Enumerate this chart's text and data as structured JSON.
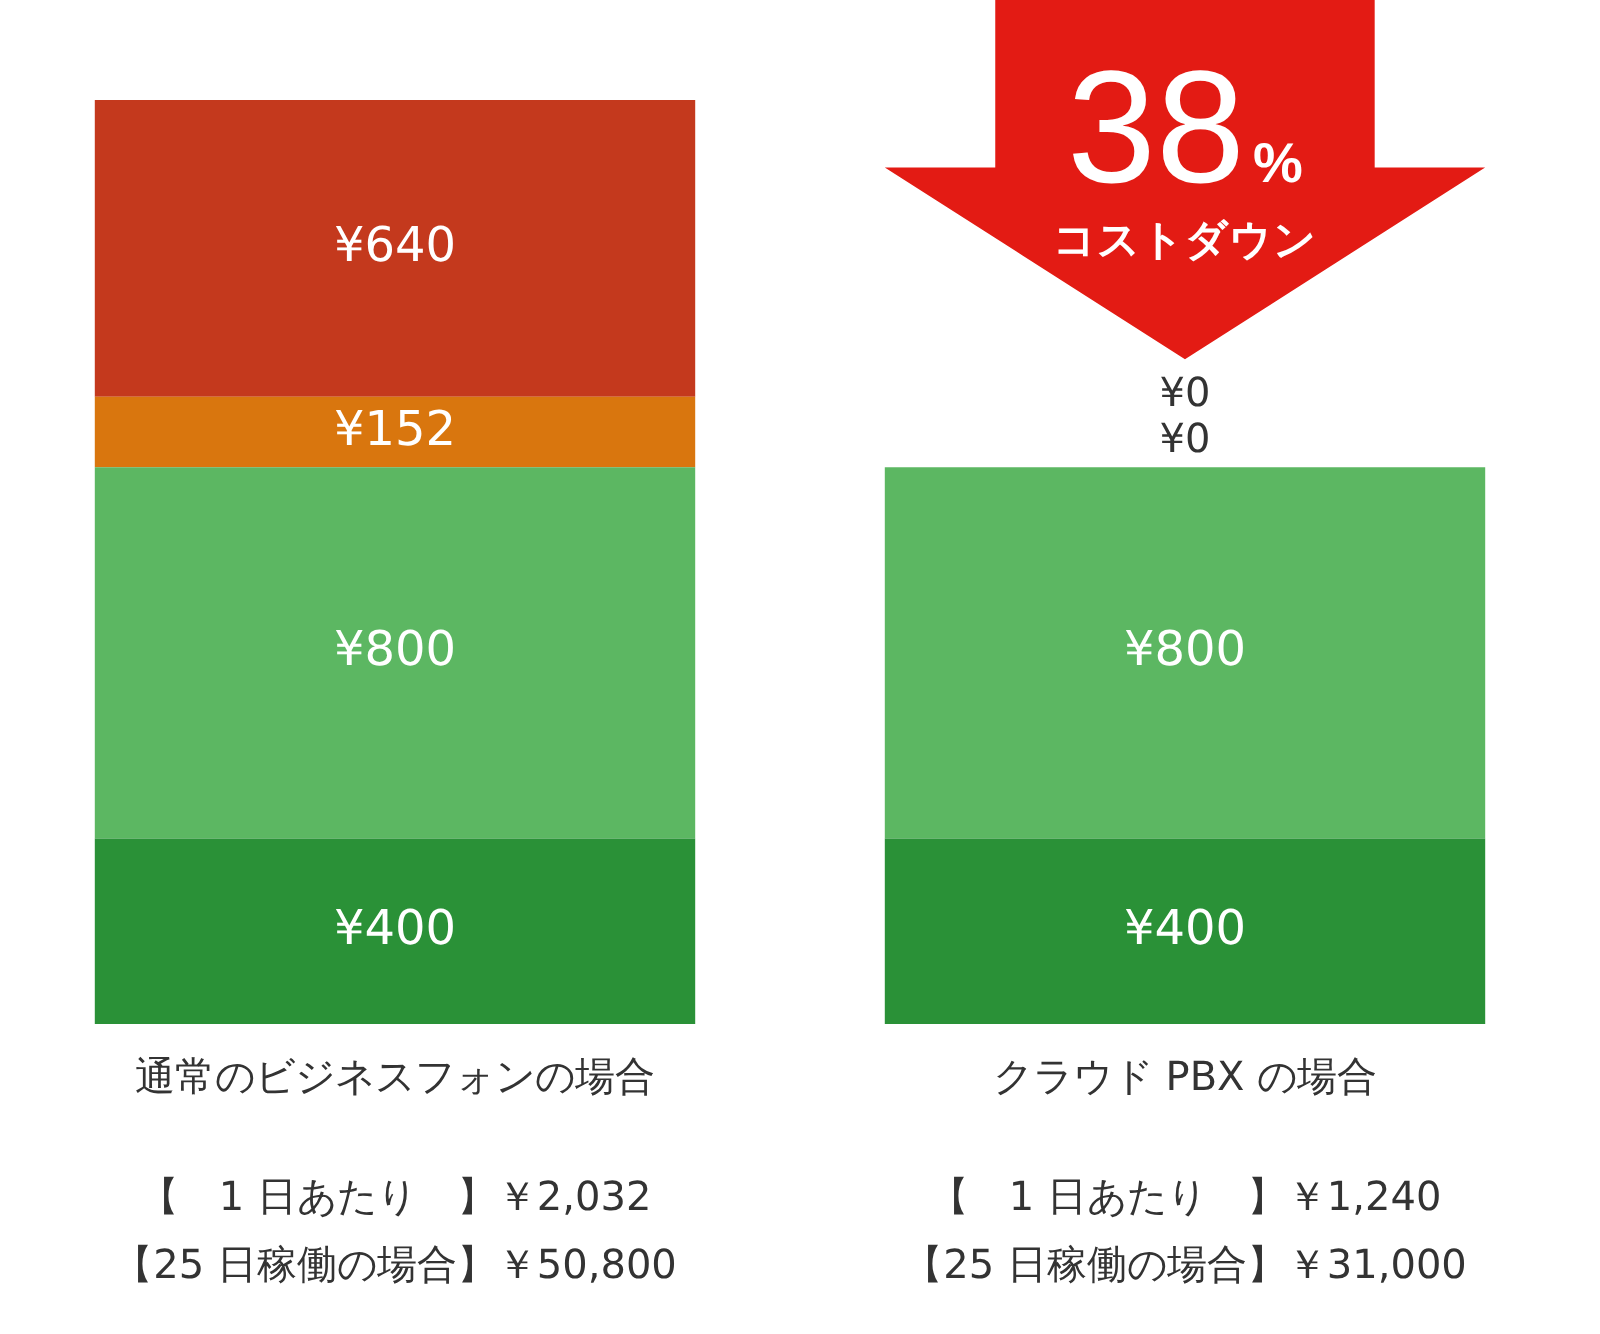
{
  "chart_data": {
    "type": "bar",
    "stacked": true,
    "categories": [
      "通常のビジネスフォンの場合",
      "クラウド PBX の場合"
    ],
    "series": [
      {
        "color": "#2a9137",
        "values": [
          400,
          400
        ],
        "value_labels": [
          "¥400",
          "¥400"
        ]
      },
      {
        "color": "#5cb762",
        "values": [
          800,
          800
        ],
        "value_labels": [
          "¥800",
          "¥800"
        ]
      },
      {
        "color": "#d9760e",
        "values": [
          152,
          0
        ],
        "value_labels": [
          "¥152",
          "¥0"
        ]
      },
      {
        "color": "#c4391d",
        "values": [
          640,
          0
        ],
        "value_labels": [
          "¥640",
          "¥0"
        ]
      }
    ],
    "annotations": [
      "38%",
      "コストダウン",
      "【　1 日あたり　】￥2,032",
      "【25 日稼働の場合】￥50,800",
      "【　1 日あたり　】￥1,240",
      "【25 日稼働の場合】￥31,000"
    ]
  }
}
